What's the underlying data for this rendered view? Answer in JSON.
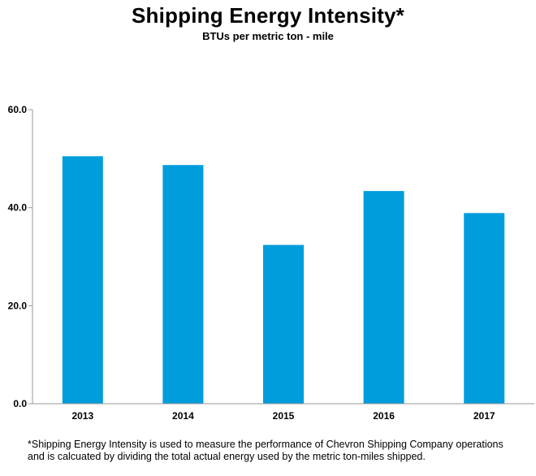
{
  "chart_data": {
    "type": "bar",
    "title": "Shipping Energy Intensity*",
    "subtitle": "BTUs per metric ton - mile",
    "xlabel": "",
    "ylabel": "",
    "categories": [
      "2013",
      "2014",
      "2015",
      "2016",
      "2017"
    ],
    "values": [
      50.5,
      48.7,
      32.4,
      43.4,
      38.9
    ],
    "ylim": [
      0,
      60
    ],
    "yticks": [
      "0.0",
      "20.0",
      "40.0",
      "60.0"
    ],
    "ytick_values": [
      0,
      20,
      40,
      60
    ],
    "grid": false,
    "legend": "none",
    "bar_color": "#009DDC",
    "axis_color": "#999999"
  },
  "footnote": {
    "line1": "*Shipping Energy Intensity is used to measure the performance of Chevron Shipping Company operations",
    "line2": "and is calcuated by dividing the total actual energy used by the metric ton-miles shipped."
  }
}
